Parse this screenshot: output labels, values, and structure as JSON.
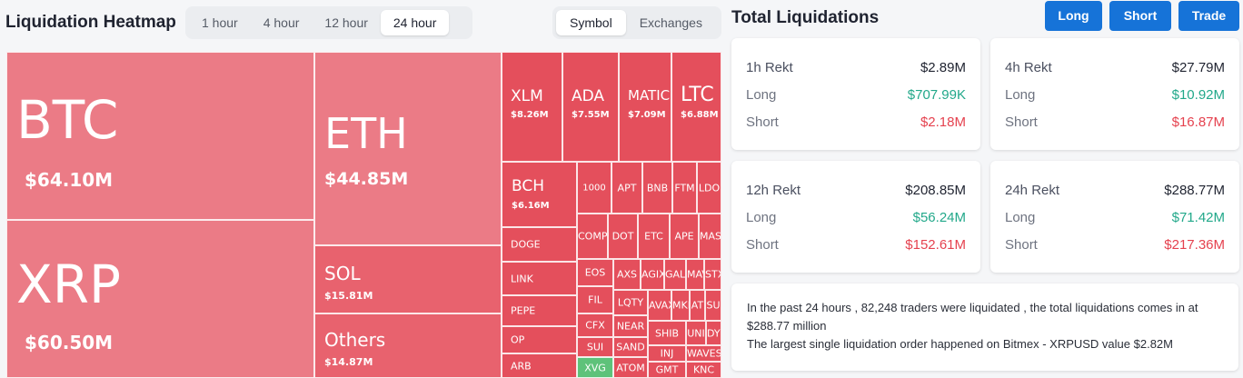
{
  "heatmap": {
    "title": "Liquidation Heatmap",
    "time_options": [
      "1 hour",
      "4 hour",
      "12 hour",
      "24 hour"
    ],
    "active_time": "24 hour",
    "view_options": [
      "Symbol",
      "Exchanges"
    ],
    "active_view": "Symbol",
    "tiles": {
      "btc": {
        "symbol": "BTC",
        "value": "$64.10M"
      },
      "xrp": {
        "symbol": "XRP",
        "value": "$60.50M"
      },
      "eth": {
        "symbol": "ETH",
        "value": "$44.85M"
      },
      "sol": {
        "symbol": "SOL",
        "value": "$15.81M"
      },
      "others": {
        "symbol": "Others",
        "value": "$14.87M"
      },
      "xlm": {
        "symbol": "XLM",
        "value": "$8.26M"
      },
      "ada": {
        "symbol": "ADA",
        "value": "$7.55M"
      },
      "matic": {
        "symbol": "MATIC",
        "value": "$7.09M"
      },
      "ltc": {
        "symbol": "LTC",
        "value": "$6.88M"
      },
      "bch": {
        "symbol": "BCH",
        "value": "$6.16M"
      },
      "doge": {
        "symbol": "DOGE"
      },
      "link": {
        "symbol": "LINK"
      },
      "pepe": {
        "symbol": "PEPE"
      },
      "op": {
        "symbol": "OP"
      },
      "arb": {
        "symbol": "ARB"
      },
      "k1000": {
        "symbol": "1000"
      },
      "apt": {
        "symbol": "APT"
      },
      "bnb": {
        "symbol": "BNB"
      },
      "ftm": {
        "symbol": "FTM"
      },
      "ldo": {
        "symbol": "LDO"
      },
      "comp": {
        "symbol": "COMP"
      },
      "dot": {
        "symbol": "DOT"
      },
      "etc": {
        "symbol": "ETC"
      },
      "ape": {
        "symbol": "APE"
      },
      "mask": {
        "symbol": "MASK"
      },
      "eos": {
        "symbol": "EOS"
      },
      "axs": {
        "symbol": "AXS"
      },
      "agix": {
        "symbol": "AGIX"
      },
      "gala": {
        "symbol": "GALA"
      },
      "mav": {
        "symbol": "MAV"
      },
      "stx": {
        "symbol": "STX"
      },
      "fil": {
        "symbol": "FIL"
      },
      "lqty": {
        "symbol": "LQTY"
      },
      "avax": {
        "symbol": "AVAX"
      },
      "mkr": {
        "symbol": "MKR"
      },
      "atom2": {
        "symbol": "AT"
      },
      "sui2": {
        "symbol": "SU"
      },
      "cfx": {
        "symbol": "CFX"
      },
      "near": {
        "symbol": "NEAR"
      },
      "shib": {
        "symbol": "SHIB"
      },
      "uni": {
        "symbol": "UNI"
      },
      "dydx": {
        "symbol": "DYDX"
      },
      "sui": {
        "symbol": "SUI"
      },
      "sand": {
        "symbol": "SAND"
      },
      "inj": {
        "symbol": "INJ"
      },
      "waves": {
        "symbol": "WAVES"
      },
      "xvg": {
        "symbol": "XVG"
      },
      "atom": {
        "symbol": "ATOM"
      },
      "gmt": {
        "symbol": "GMT"
      },
      "knc": {
        "symbol": "KNC"
      }
    }
  },
  "totals": {
    "title": "Total Liquidations",
    "buttons": {
      "long": "Long",
      "short": "Short",
      "trade": "Trade"
    },
    "cards": [
      {
        "label": "1h Rekt",
        "total": "$2.89M",
        "long_label": "Long",
        "long": "$707.99K",
        "short_label": "Short",
        "short": "$2.18M"
      },
      {
        "label": "4h Rekt",
        "total": "$27.79M",
        "long_label": "Long",
        "long": "$10.92M",
        "short_label": "Short",
        "short": "$16.87M"
      },
      {
        "label": "12h Rekt",
        "total": "$208.85M",
        "long_label": "Long",
        "long": "$56.24M",
        "short_label": "Short",
        "short": "$152.61M"
      },
      {
        "label": "24h Rekt",
        "total": "$288.77M",
        "long_label": "Long",
        "long": "$71.42M",
        "short_label": "Short",
        "short": "$217.36M"
      }
    ],
    "summary_line1": "In the past 24 hours , 82,248 traders were liquidated , the total liquidations comes in at $288.77 million",
    "summary_line2": "The largest single liquidation order happened on Bitmex - XRPUSD value $2.82M"
  },
  "colors": {
    "accent": "#1673d8",
    "long": "#22a88a",
    "short": "#e5424f",
    "tile_light": "#eb7b86",
    "tile_dark": "#e14a58",
    "tile_green": "#5ec27a"
  }
}
